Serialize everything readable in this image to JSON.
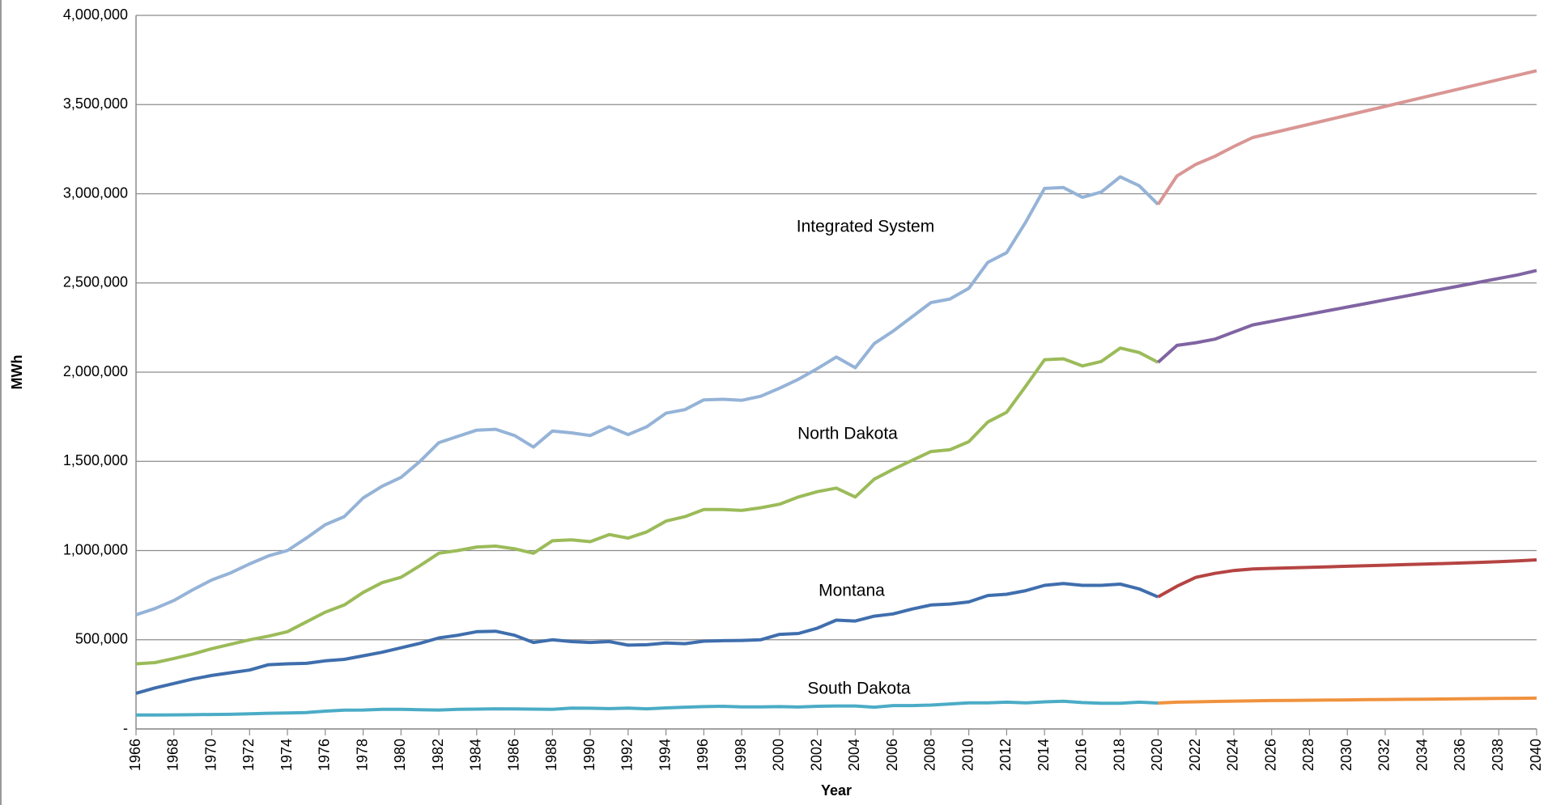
{
  "chart_data": {
    "type": "line",
    "xlabel": "Year",
    "ylabel": "MWh",
    "x": [
      1966,
      1967,
      1968,
      1969,
      1970,
      1971,
      1972,
      1973,
      1974,
      1975,
      1976,
      1977,
      1978,
      1979,
      1980,
      1981,
      1982,
      1983,
      1984,
      1985,
      1986,
      1987,
      1988,
      1989,
      1990,
      1991,
      1992,
      1993,
      1994,
      1995,
      1996,
      1997,
      1998,
      1999,
      2000,
      2001,
      2002,
      2003,
      2004,
      2005,
      2006,
      2007,
      2008,
      2009,
      2010,
      2011,
      2012,
      2013,
      2014,
      2015,
      2016,
      2017,
      2018,
      2019,
      2020,
      2021,
      2022,
      2023,
      2024,
      2025,
      2026,
      2027,
      2028,
      2029,
      2030,
      2031,
      2032,
      2033,
      2034,
      2035,
      2036,
      2037,
      2038,
      2039,
      2040
    ],
    "series": [
      {
        "name": "Integrated System",
        "color": "#95b3d7",
        "values": [
          640000,
          675000,
          720000,
          780000,
          835000,
          875000,
          925000,
          970000,
          1000000,
          1070000,
          1145000,
          1190000,
          1295000,
          1360000,
          1410000,
          1500000,
          1605000,
          1640000,
          1675000,
          1680000,
          1645000,
          1580000,
          1670000,
          1660000,
          1645000,
          1695000,
          1650000,
          1695000,
          1770000,
          1790000,
          1845000,
          1848000,
          1842000,
          1865000,
          1910000,
          1960000,
          2020000,
          2085000,
          2025000,
          2160000,
          2230000,
          2310000,
          2390000,
          2410000,
          2470000,
          2615000,
          2670000,
          2840000,
          3030000,
          3035000,
          2980000,
          3010000,
          3095000,
          3045000,
          2940000,
          null,
          null,
          null,
          null,
          null,
          null,
          null,
          null,
          null,
          null,
          null,
          null,
          null,
          null,
          null,
          null,
          null,
          null,
          null,
          null
        ]
      },
      {
        "color": "#d99694",
        "values": [
          null,
          null,
          null,
          null,
          null,
          null,
          null,
          null,
          null,
          null,
          null,
          null,
          null,
          null,
          null,
          null,
          null,
          null,
          null,
          null,
          null,
          null,
          null,
          null,
          null,
          null,
          null,
          null,
          null,
          null,
          null,
          null,
          null,
          null,
          null,
          null,
          null,
          null,
          null,
          null,
          null,
          null,
          null,
          null,
          null,
          null,
          null,
          null,
          null,
          null,
          null,
          null,
          null,
          null,
          2940000,
          3100000,
          3165000,
          3210000,
          3265000,
          3315000,
          3340000,
          3365000,
          3390000,
          3415000,
          3440000,
          3465000,
          3490000,
          3515000,
          3540000,
          3565000,
          3590000,
          3615000,
          3640000,
          3665000,
          3690000
        ]
      },
      {
        "name": "North Dakota",
        "color": "#9bbb59",
        "values": [
          365000,
          372000,
          395000,
          420000,
          450000,
          475000,
          500000,
          520000,
          545000,
          600000,
          655000,
          695000,
          765000,
          820000,
          850000,
          915000,
          985000,
          1000000,
          1020000,
          1025000,
          1010000,
          985000,
          1055000,
          1060000,
          1050000,
          1090000,
          1070000,
          1105000,
          1165000,
          1190000,
          1230000,
          1230000,
          1225000,
          1240000,
          1260000,
          1300000,
          1330000,
          1350000,
          1300000,
          1400000,
          1455000,
          1505000,
          1555000,
          1565000,
          1610000,
          1720000,
          1775000,
          1920000,
          2070000,
          2075000,
          2035000,
          2060000,
          2135000,
          2110000,
          2055000,
          null,
          null,
          null,
          null,
          null,
          null,
          null,
          null,
          null,
          null,
          null,
          null,
          null,
          null,
          null,
          null,
          null,
          null,
          null,
          null
        ]
      },
      {
        "color": "#8064a2",
        "values": [
          null,
          null,
          null,
          null,
          null,
          null,
          null,
          null,
          null,
          null,
          null,
          null,
          null,
          null,
          null,
          null,
          null,
          null,
          null,
          null,
          null,
          null,
          null,
          null,
          null,
          null,
          null,
          null,
          null,
          null,
          null,
          null,
          null,
          null,
          null,
          null,
          null,
          null,
          null,
          null,
          null,
          null,
          null,
          null,
          null,
          null,
          null,
          null,
          null,
          null,
          null,
          null,
          null,
          null,
          2055000,
          2150000,
          2165000,
          2185000,
          2225000,
          2265000,
          2285000,
          2305000,
          2325000,
          2345000,
          2365000,
          2385000,
          2405000,
          2425000,
          2445000,
          2465000,
          2485000,
          2505000,
          2525000,
          2545000,
          2570000
        ]
      },
      {
        "name": "Montana",
        "color": "#3f6ead",
        "values": [
          200000,
          230000,
          255000,
          280000,
          300000,
          315000,
          330000,
          360000,
          365000,
          368000,
          382000,
          390000,
          410000,
          430000,
          455000,
          480000,
          510000,
          525000,
          545000,
          548000,
          525000,
          485000,
          500000,
          490000,
          485000,
          490000,
          470000,
          472000,
          482000,
          478000,
          492000,
          495000,
          496000,
          500000,
          530000,
          535000,
          565000,
          610000,
          605000,
          632000,
          645000,
          672000,
          695000,
          700000,
          712000,
          748000,
          755000,
          775000,
          805000,
          815000,
          805000,
          805000,
          812000,
          785000,
          740000,
          null,
          null,
          null,
          null,
          null,
          null,
          null,
          null,
          null,
          null,
          null,
          null,
          null,
          null,
          null,
          null,
          null,
          null,
          null,
          null
        ]
      },
      {
        "color": "#b54442",
        "values": [
          null,
          null,
          null,
          null,
          null,
          null,
          null,
          null,
          null,
          null,
          null,
          null,
          null,
          null,
          null,
          null,
          null,
          null,
          null,
          null,
          null,
          null,
          null,
          null,
          null,
          null,
          null,
          null,
          null,
          null,
          null,
          null,
          null,
          null,
          null,
          null,
          null,
          null,
          null,
          null,
          null,
          null,
          null,
          null,
          null,
          null,
          null,
          null,
          null,
          null,
          null,
          null,
          null,
          null,
          740000,
          800000,
          850000,
          872000,
          888000,
          897000,
          900000,
          903000,
          906000,
          909000,
          912000,
          915000,
          918000,
          921000,
          924000,
          927000,
          930000,
          934000,
          938000,
          942000,
          948000
        ]
      },
      {
        "name": "South Dakota",
        "color": "#4bacc6",
        "values": [
          78000,
          78000,
          79000,
          80000,
          81000,
          82000,
          85000,
          88000,
          90000,
          92000,
          100000,
          105000,
          106000,
          110000,
          110000,
          108000,
          106000,
          110000,
          111000,
          113000,
          112000,
          111000,
          110000,
          117000,
          116000,
          114000,
          117000,
          113000,
          118000,
          122000,
          125000,
          127000,
          124000,
          124000,
          125000,
          123000,
          127000,
          129000,
          129000,
          122000,
          131000,
          131000,
          134000,
          140000,
          146000,
          146000,
          150000,
          146000,
          152000,
          155000,
          148000,
          144000,
          144000,
          150000,
          145000,
          null,
          null,
          null,
          null,
          null,
          null,
          null,
          null,
          null,
          null,
          null,
          null,
          null,
          null,
          null,
          null,
          null,
          null,
          null,
          null
        ]
      },
      {
        "color": "#f0923e",
        "values": [
          null,
          null,
          null,
          null,
          null,
          null,
          null,
          null,
          null,
          null,
          null,
          null,
          null,
          null,
          null,
          null,
          null,
          null,
          null,
          null,
          null,
          null,
          null,
          null,
          null,
          null,
          null,
          null,
          null,
          null,
          null,
          null,
          null,
          null,
          null,
          null,
          null,
          null,
          null,
          null,
          null,
          null,
          null,
          null,
          null,
          null,
          null,
          null,
          null,
          null,
          null,
          null,
          null,
          null,
          145000,
          150000,
          152000,
          154000,
          156000,
          158000,
          159000,
          160000,
          161000,
          162000,
          163000,
          164000,
          165000,
          166000,
          167000,
          168000,
          169000,
          170000,
          171000,
          172000,
          173000
        ]
      }
    ],
    "xlim": [
      1966,
      2040
    ],
    "xticks": [
      1966,
      1968,
      1970,
      1972,
      1974,
      1976,
      1978,
      1980,
      1982,
      1984,
      1986,
      1988,
      1990,
      1992,
      1994,
      1996,
      1998,
      2000,
      2002,
      2004,
      2006,
      2008,
      2010,
      2012,
      2014,
      2016,
      2018,
      2020,
      2022,
      2024,
      2026,
      2028,
      2030,
      2032,
      2034,
      2036,
      2038,
      2040
    ],
    "ylim": [
      0,
      4000000
    ],
    "yticks": [
      {
        "value": 0,
        "label": "-"
      },
      {
        "value": 500000,
        "label": "500,000"
      },
      {
        "value": 1000000,
        "label": "1,000,000"
      },
      {
        "value": 1500000,
        "label": "1,500,000"
      },
      {
        "value": 2000000,
        "label": "2,000,000"
      },
      {
        "value": 2500000,
        "label": "2,500,000"
      },
      {
        "value": 3000000,
        "label": "3,000,000"
      },
      {
        "value": 3500000,
        "label": "3,500,000"
      },
      {
        "value": 4000000,
        "label": "4,000,000"
      }
    ],
    "grid": true
  }
}
